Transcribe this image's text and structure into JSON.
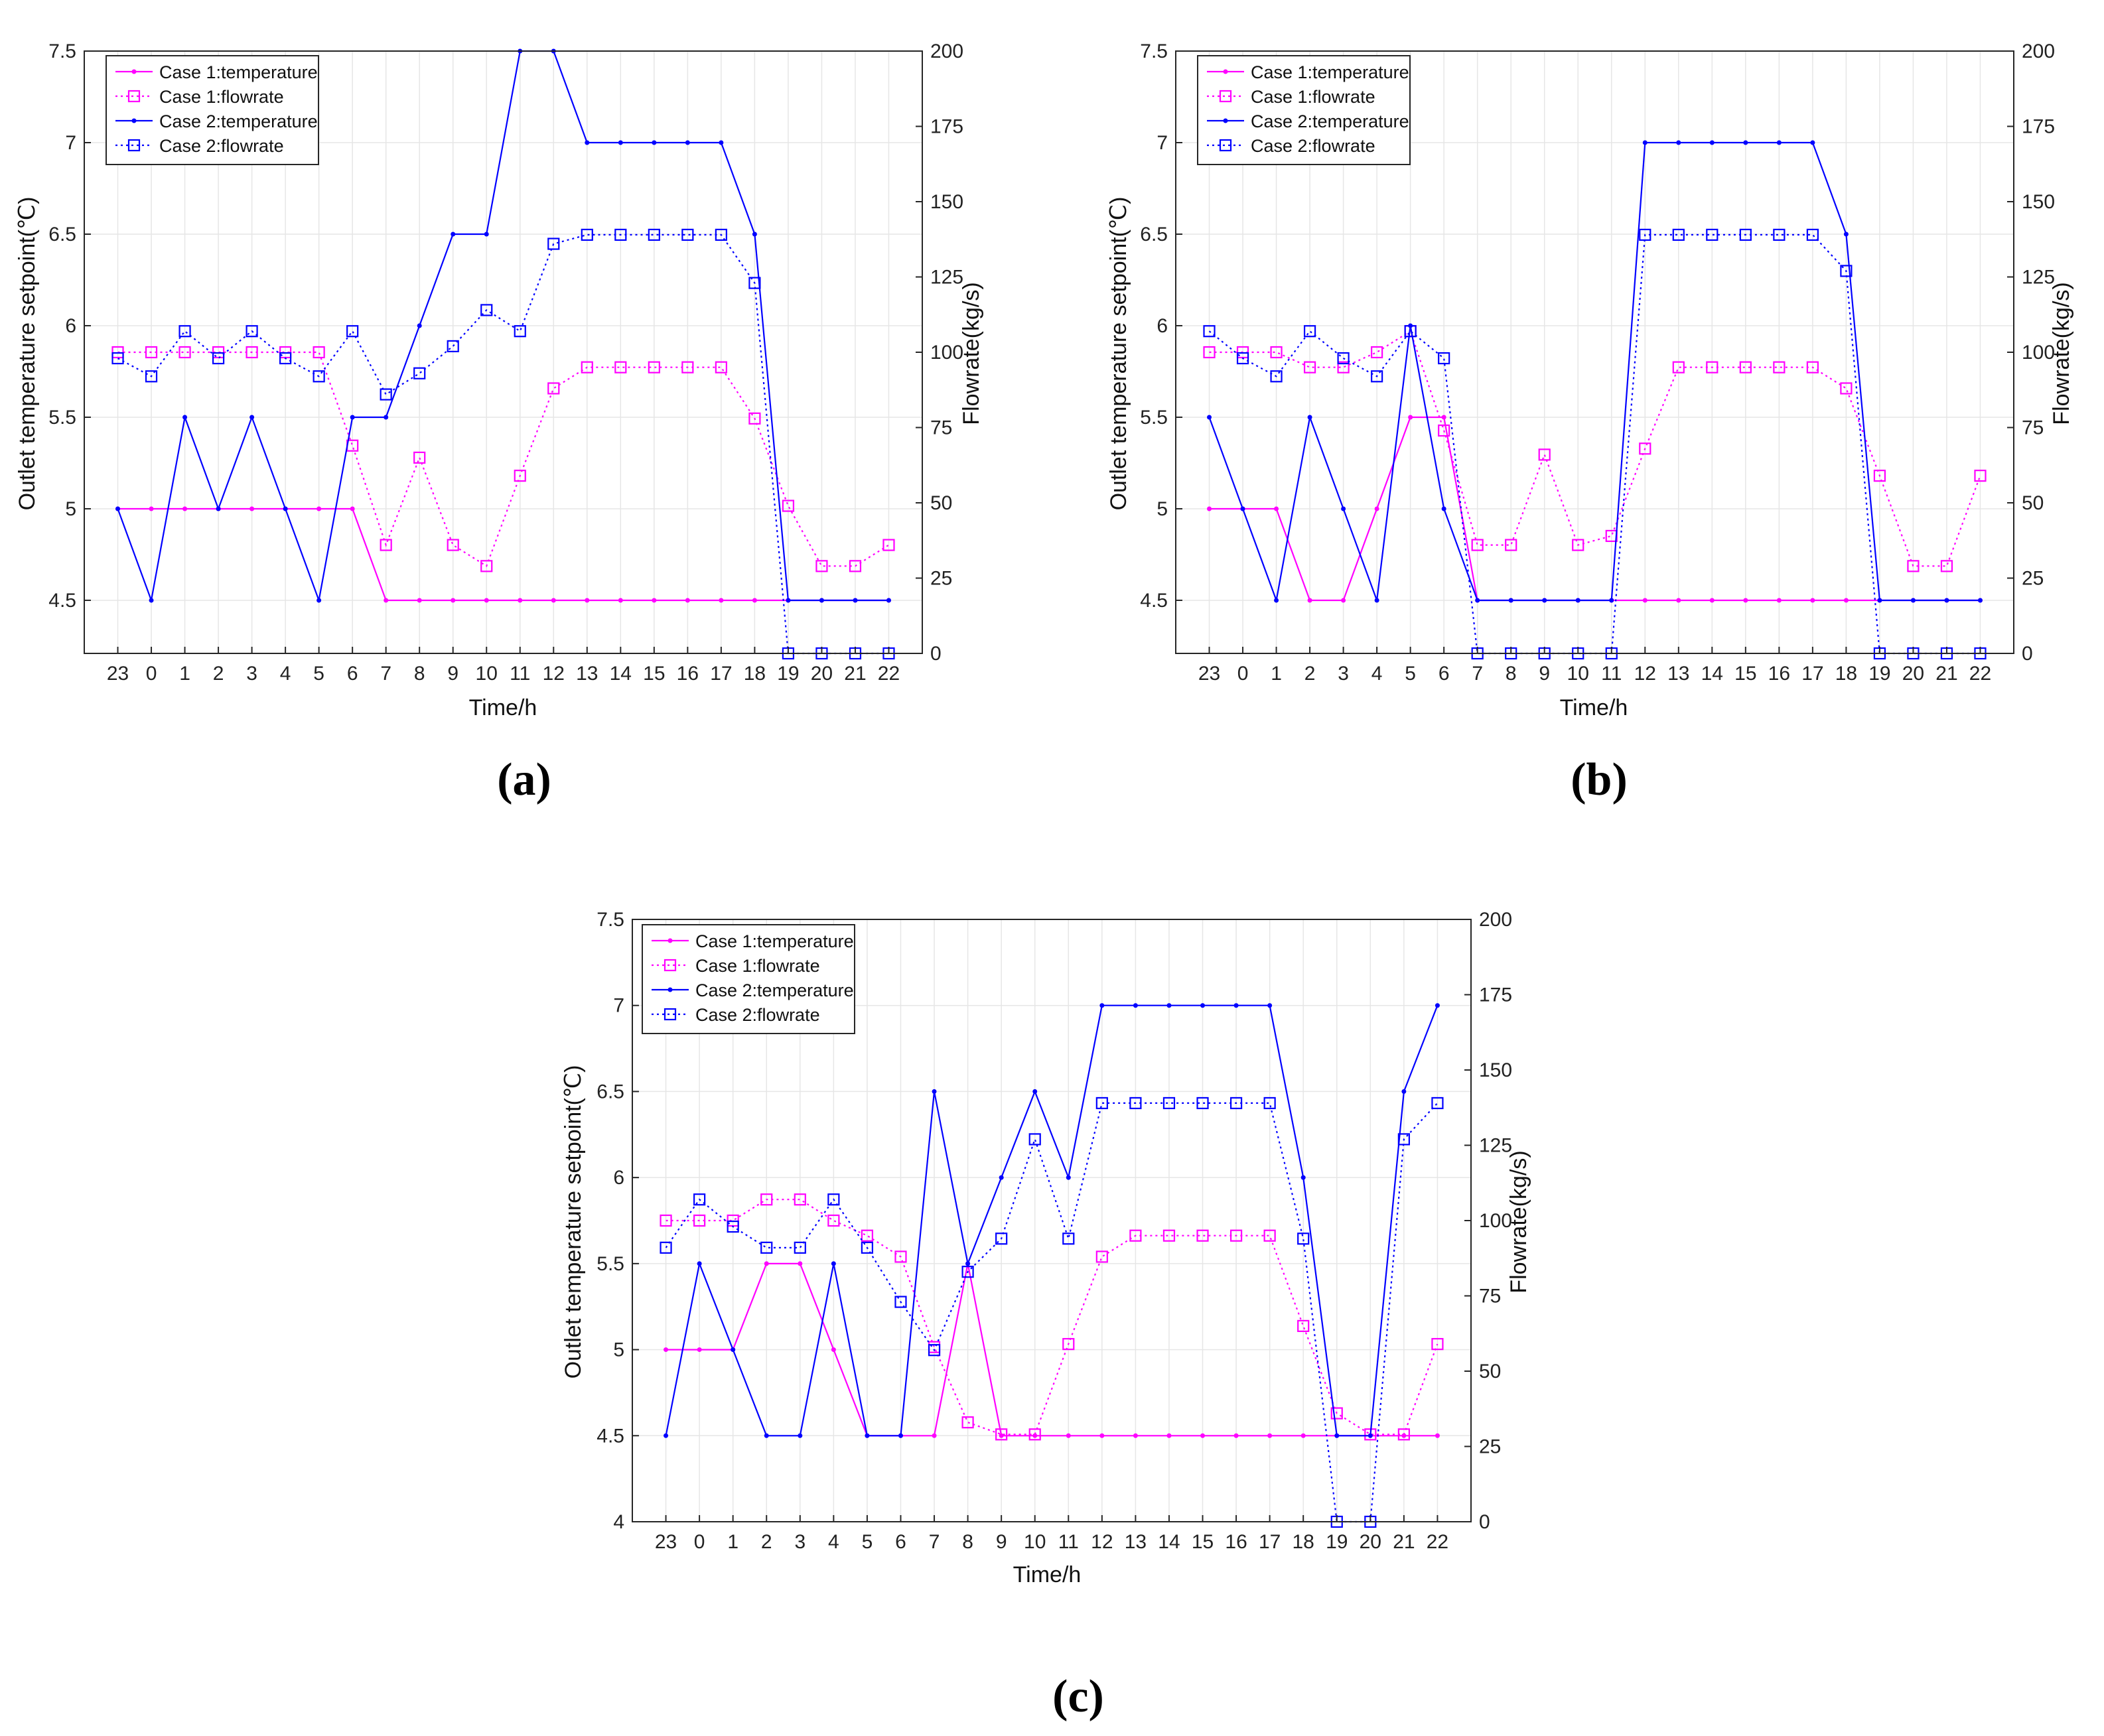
{
  "colors": {
    "case1": "#ff00ff",
    "case2": "#0000ff",
    "grid": "#e6e6e6",
    "axis": "#262626"
  },
  "chart_data": [
    {
      "type": "line",
      "panel_label": "(a)",
      "x_tick_labels": [
        "23",
        "0",
        "1",
        "2",
        "3",
        "4",
        "5",
        "6",
        "7",
        "8",
        "9",
        "10",
        "11",
        "12",
        "13",
        "14",
        "15",
        "16",
        "17",
        "18",
        "19",
        "20",
        "21",
        "22"
      ],
      "xlabel": "Time/h",
      "ylabel_left": "Outlet temperature setpoint(℃)",
      "ylabel_right": "Flowrate(kg/s)",
      "ylim_left": [
        4.21,
        7.5
      ],
      "left_ticks": [
        "4.5",
        "5",
        "5.5",
        "6",
        "6.5",
        "7",
        "7.5"
      ],
      "ylim_right": [
        0,
        200
      ],
      "right_ticks": [
        "0",
        "25",
        "50",
        "75",
        "100",
        "125",
        "150",
        "175",
        "200"
      ],
      "legend": [
        "Case 1:temperature",
        "Case 1:flowrate",
        "Case 2:temperature",
        "Case 2:flowrate"
      ],
      "series": [
        {
          "name": "Case 1:temperature",
          "axis": "left",
          "style": "solid-dot",
          "color": "#ff00ff",
          "values": [
            5,
            5,
            5,
            5,
            5,
            5,
            5,
            5,
            4.5,
            4.5,
            4.5,
            4.5,
            4.5,
            4.5,
            4.5,
            4.5,
            4.5,
            4.5,
            4.5,
            4.5,
            4.5,
            4.5,
            4.5,
            4.5
          ]
        },
        {
          "name": "Case 1:flowrate",
          "axis": "right",
          "style": "dotted-square",
          "color": "#ff00ff",
          "values": [
            100,
            100,
            100,
            100,
            100,
            100,
            100,
            69,
            36,
            65,
            36,
            29,
            59,
            88,
            95,
            95,
            95,
            95,
            95,
            78,
            49,
            29,
            29,
            36
          ]
        },
        {
          "name": "Case 2:temperature",
          "axis": "left",
          "style": "solid-dot",
          "color": "#0000ff",
          "values": [
            5,
            4.5,
            5.5,
            5,
            5.5,
            5,
            4.5,
            5.5,
            5.5,
            6,
            6.5,
            6.5,
            7.5,
            7.5,
            7,
            7,
            7,
            7,
            7,
            6.5,
            4.5,
            4.5,
            4.5,
            4.5
          ]
        },
        {
          "name": "Case 2:flowrate",
          "axis": "right",
          "style": "dotted-square",
          "color": "#0000ff",
          "values": [
            98,
            92,
            107,
            98,
            107,
            98,
            92,
            107,
            86,
            93,
            102,
            114,
            107,
            136,
            139,
            139,
            139,
            139,
            139,
            123,
            0,
            0,
            0,
            0
          ]
        }
      ]
    },
    {
      "type": "line",
      "panel_label": "(b)",
      "x_tick_labels": [
        "23",
        "0",
        "1",
        "2",
        "3",
        "4",
        "5",
        "6",
        "7",
        "8",
        "9",
        "10",
        "11",
        "12",
        "13",
        "14",
        "15",
        "16",
        "17",
        "18",
        "19",
        "20",
        "21",
        "22"
      ],
      "xlabel": "Time/h",
      "ylabel_left": "Outlet temperature setpoint(℃)",
      "ylabel_right": "Flowrate(kg/s)",
      "ylim_left": [
        4.21,
        7.5
      ],
      "left_ticks": [
        "4.5",
        "5",
        "5.5",
        "6",
        "6.5",
        "7",
        "7.5"
      ],
      "ylim_right": [
        0,
        200
      ],
      "right_ticks": [
        "0",
        "25",
        "50",
        "75",
        "100",
        "125",
        "150",
        "175",
        "200"
      ],
      "legend": [
        "Case 1:temperature",
        "Case 1:flowrate",
        "Case 2:temperature",
        "Case 2:flowrate"
      ],
      "series": [
        {
          "name": "Case 1:temperature",
          "axis": "left",
          "style": "solid-dot",
          "color": "#ff00ff",
          "values": [
            5,
            5,
            5,
            4.5,
            4.5,
            5,
            5.5,
            5.5,
            4.5,
            4.5,
            4.5,
            4.5,
            4.5,
            4.5,
            4.5,
            4.5,
            4.5,
            4.5,
            4.5,
            4.5,
            4.5,
            4.5,
            4.5,
            4.5
          ]
        },
        {
          "name": "Case 1:flowrate",
          "axis": "right",
          "style": "dotted-square",
          "color": "#ff00ff",
          "values": [
            100,
            100,
            100,
            95,
            95,
            100,
            107,
            74,
            36,
            36,
            66,
            36,
            39,
            68,
            95,
            95,
            95,
            95,
            95,
            88,
            59,
            29,
            29,
            59
          ]
        },
        {
          "name": "Case 2:temperature",
          "axis": "left",
          "style": "solid-dot",
          "color": "#0000ff",
          "values": [
            5.5,
            5,
            4.5,
            5.5,
            5,
            4.5,
            6,
            5,
            4.5,
            4.5,
            4.5,
            4.5,
            4.5,
            7,
            7,
            7,
            7,
            7,
            7,
            6.5,
            4.5,
            4.5,
            4.5,
            4.5
          ]
        },
        {
          "name": "Case 2:flowrate",
          "axis": "right",
          "style": "dotted-square",
          "color": "#0000ff",
          "values": [
            107,
            98,
            92,
            107,
            98,
            92,
            107,
            98,
            0,
            0,
            0,
            0,
            0,
            139,
            139,
            139,
            139,
            139,
            139,
            127,
            0,
            0,
            0,
            0
          ]
        }
      ]
    },
    {
      "type": "line",
      "panel_label": "(c)",
      "x_tick_labels": [
        "23",
        "0",
        "1",
        "2",
        "3",
        "4",
        "5",
        "6",
        "7",
        "8",
        "9",
        "10",
        "11",
        "12",
        "13",
        "14",
        "15",
        "16",
        "17",
        "18",
        "19",
        "20",
        "21",
        "22"
      ],
      "xlabel": "Time/h",
      "ylabel_left": "Outlet temperature setpoint(℃)",
      "ylabel_right": "Flowrate(kg/s)",
      "ylim_left": [
        4,
        7.5
      ],
      "left_ticks": [
        "4",
        "4.5",
        "5",
        "5.5",
        "6",
        "6.5",
        "7",
        "7.5"
      ],
      "ylim_right": [
        0,
        200
      ],
      "right_ticks": [
        "0",
        "25",
        "50",
        "75",
        "100",
        "125",
        "150",
        "175",
        "200"
      ],
      "legend": [
        "Case 1:temperature",
        "Case 1:flowrate",
        "Case 2:temperature",
        "Case 2:flowrate"
      ],
      "series": [
        {
          "name": "Case 1:temperature",
          "axis": "left",
          "style": "solid-dot",
          "color": "#ff00ff",
          "values": [
            5,
            5,
            5,
            5.5,
            5.5,
            5,
            4.5,
            4.5,
            4.5,
            5.5,
            4.5,
            4.5,
            4.5,
            4.5,
            4.5,
            4.5,
            4.5,
            4.5,
            4.5,
            4.5,
            4.5,
            4.5,
            4.5,
            4.5
          ]
        },
        {
          "name": "Case 1:flowrate",
          "axis": "right",
          "style": "dotted-square",
          "color": "#ff00ff",
          "values": [
            100,
            100,
            100,
            107,
            107,
            100,
            95,
            88,
            58,
            33,
            29,
            29,
            59,
            88,
            95,
            95,
            95,
            95,
            95,
            65,
            36,
            29,
            29,
            59
          ]
        },
        {
          "name": "Case 2:temperature",
          "axis": "left",
          "style": "solid-dot",
          "color": "#0000ff",
          "values": [
            4.5,
            5.5,
            5,
            4.5,
            4.5,
            5.5,
            4.5,
            4.5,
            6.5,
            5.5,
            6,
            6.5,
            6,
            7,
            7,
            7,
            7,
            7,
            7,
            6,
            4.5,
            4.5,
            6.5,
            7
          ]
        },
        {
          "name": "Case 2:flowrate",
          "axis": "right",
          "style": "dotted-square",
          "color": "#0000ff",
          "values": [
            91,
            107,
            98,
            91,
            91,
            107,
            91,
            73,
            57,
            83,
            94,
            127,
            94,
            139,
            139,
            139,
            139,
            139,
            139,
            94,
            0,
            0,
            127,
            139
          ]
        }
      ]
    }
  ]
}
